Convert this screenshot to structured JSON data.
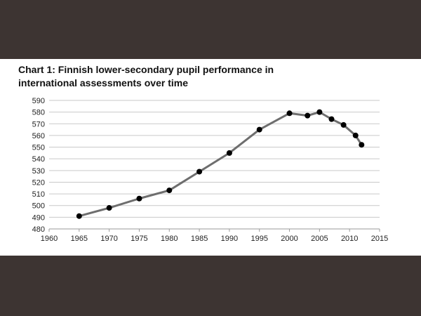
{
  "chart_data": {
    "type": "line",
    "title_lines": [
      "Chart 1: Finnish lower-secondary pupil performance in",
      "international assessments over time"
    ],
    "xlabel": "",
    "ylabel": "",
    "xlim": [
      1960,
      2015
    ],
    "ylim": [
      480,
      590
    ],
    "x_ticks": [
      1960,
      1965,
      1970,
      1975,
      1980,
      1985,
      1990,
      1995,
      2000,
      2005,
      2010,
      2015
    ],
    "y_ticks": [
      480,
      490,
      500,
      510,
      520,
      530,
      540,
      550,
      560,
      570,
      580,
      590
    ],
    "grid": "horizontal",
    "series": [
      {
        "color": "#6e6e6e",
        "marker_color": "#000000",
        "points": [
          [
            1965,
            491
          ],
          [
            1970,
            498
          ],
          [
            1975,
            506
          ],
          [
            1980,
            513
          ],
          [
            1985,
            529
          ],
          [
            1990,
            545
          ],
          [
            1995,
            565
          ],
          [
            2000,
            579
          ],
          [
            2003,
            577
          ],
          [
            2005,
            580
          ],
          [
            2007,
            574
          ],
          [
            2009,
            569
          ],
          [
            2011,
            560
          ],
          [
            2012,
            552
          ]
        ]
      }
    ]
  }
}
